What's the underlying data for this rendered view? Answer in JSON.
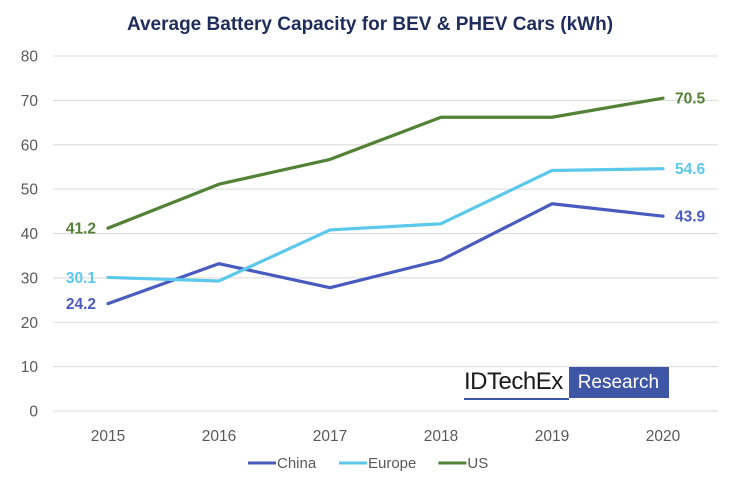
{
  "chart_data": {
    "type": "line",
    "title": "Average Battery Capacity for BEV & PHEV Cars (kWh)",
    "xlabel": "",
    "ylabel": "",
    "categories": [
      "2015",
      "2016",
      "2017",
      "2018",
      "2019",
      "2020"
    ],
    "ylim": [
      0,
      80
    ],
    "yticks": [
      "0",
      "10",
      "20",
      "30",
      "40",
      "50",
      "60",
      "70",
      "80"
    ],
    "grid": true,
    "legend_position": "bottom",
    "series": [
      {
        "name": "China",
        "color": "#4a5bbf",
        "values": [
          24.2,
          33.2,
          27.8,
          34.0,
          46.7,
          43.9
        ],
        "start_label": "24.2",
        "end_label": "43.9"
      },
      {
        "name": "Europe",
        "color": "#5bc8ec",
        "values": [
          30.1,
          29.3,
          40.8,
          42.2,
          54.2,
          54.6
        ],
        "start_label": "30.1",
        "end_label": "54.6"
      },
      {
        "name": "US",
        "color": "#538135",
        "values": [
          41.2,
          51.1,
          56.7,
          66.2,
          66.2,
          70.5
        ],
        "start_label": "41.2",
        "end_label": "70.5"
      }
    ]
  },
  "branding": {
    "logo_left": "IDTechEx",
    "logo_right": "Research"
  }
}
